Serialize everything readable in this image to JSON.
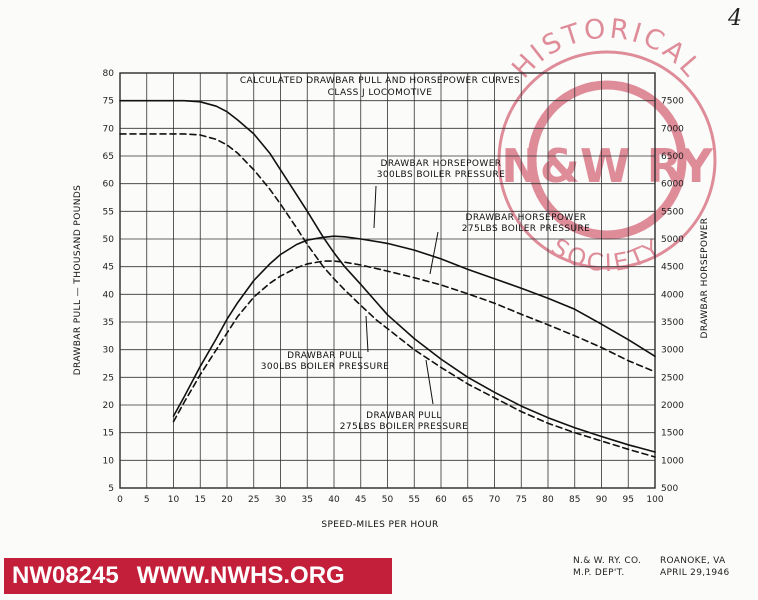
{
  "page_number": "4",
  "watermark": {
    "arc_top": "HISTORICAL",
    "arc_bottom": "SOCIETY",
    "monogram": "N&W RY",
    "color": "#c41f3a"
  },
  "footer": {
    "catalog_id": "NW08245",
    "website": "WWW.NWHS.ORG",
    "company_line1": "N.& W. RY. CO.",
    "company_line2": "M.P. DEP'T.",
    "place": "ROANOKE, VA",
    "date": "APRIL 29,1946"
  },
  "chart_data": {
    "type": "line",
    "title": "CALCULATED DRAWBAR PULL AND HORSEPOWER CURVES",
    "subtitle": "CLASS J LOCOMOTIVE",
    "xlabel": "SPEED-MILES PER HOUR",
    "ylabel_left": "DRAWBAR PULL — THOUSAND POUNDS",
    "ylabel_right": "DRAWBAR HORSEPOWER",
    "xlim": [
      0,
      100
    ],
    "ylim_left": [
      5,
      80
    ],
    "ylim_right": [
      500,
      8000
    ],
    "x_ticks": [
      0,
      5,
      10,
      15,
      20,
      25,
      30,
      35,
      40,
      45,
      50,
      55,
      60,
      65,
      70,
      75,
      80,
      85,
      90,
      95,
      100
    ],
    "y_ticks_left": [
      5,
      10,
      15,
      20,
      25,
      30,
      35,
      40,
      45,
      50,
      55,
      60,
      65,
      70,
      75,
      80
    ],
    "y_ticks_right": [
      500,
      1000,
      1500,
      2000,
      2500,
      3000,
      3500,
      4000,
      4500,
      5000,
      5500,
      6000,
      6500,
      7000,
      7500
    ],
    "grid": true,
    "series": [
      {
        "axis": "left",
        "style": "solid",
        "x": [
          0,
          10,
          12,
          15,
          18,
          20,
          22,
          25,
          28,
          30,
          33,
          35,
          38,
          40,
          42,
          45,
          48,
          50,
          55,
          60,
          65,
          70,
          75,
          80,
          85,
          90,
          95,
          100
        ],
        "y": [
          75,
          75,
          75,
          74.8,
          74,
          73,
          71.5,
          69,
          65.5,
          62.5,
          58,
          55,
          50.3,
          47.5,
          45,
          41.8,
          38.5,
          36.3,
          32,
          28.3,
          25,
          22.3,
          19.8,
          17.7,
          15.9,
          14.3,
          12.8,
          11.5
        ]
      },
      {
        "axis": "left",
        "style": "dashed",
        "x": [
          0,
          10,
          12,
          15,
          18,
          20,
          22,
          25,
          28,
          30,
          33,
          35,
          38,
          40,
          42,
          45,
          48,
          50,
          55,
          60,
          65,
          70,
          75,
          80,
          85,
          90,
          95,
          100
        ],
        "y": [
          69,
          69,
          69,
          68.8,
          68,
          67,
          65.5,
          62.5,
          59,
          56.3,
          52,
          49,
          45,
          42.8,
          40.8,
          38,
          35.3,
          33.8,
          30,
          26.8,
          23.8,
          21.3,
          18.8,
          16.7,
          15,
          13.5,
          12,
          10.6
        ]
      },
      {
        "axis": "right",
        "style": "solid",
        "x": [
          10,
          12,
          15,
          18,
          20,
          22,
          25,
          28,
          30,
          33,
          35,
          38,
          40,
          42,
          45,
          50,
          55,
          60,
          65,
          70,
          75,
          80,
          85,
          90,
          95,
          100
        ],
        "y": [
          1800,
          2150,
          2700,
          3200,
          3550,
          3850,
          4250,
          4550,
          4720,
          4900,
          4980,
          5030,
          5050,
          5040,
          5000,
          4920,
          4800,
          4640,
          4450,
          4280,
          4110,
          3930,
          3730,
          3460,
          3180,
          2880
        ]
      },
      {
        "axis": "right",
        "style": "dashed",
        "x": [
          10,
          12,
          15,
          18,
          20,
          22,
          25,
          28,
          30,
          33,
          35,
          38,
          40,
          42,
          45,
          50,
          55,
          60,
          65,
          70,
          75,
          80,
          85,
          90,
          95,
          100
        ],
        "y": [
          1700,
          2050,
          2550,
          3000,
          3300,
          3600,
          3950,
          4200,
          4330,
          4480,
          4550,
          4600,
          4600,
          4580,
          4530,
          4420,
          4300,
          4170,
          4010,
          3840,
          3640,
          3450,
          3250,
          3040,
          2800,
          2600
        ]
      }
    ],
    "annotations": [
      {
        "text": "DRAWBAR HORSEPOWER",
        "text2": "300LBS BOILER PRESSURE"
      },
      {
        "text": "DRAWBAR HORSEPOWER",
        "text2": "275LBS BOILER PRESSURE"
      },
      {
        "text": "DRAWBAR PULL",
        "text2": "300LBS BOILER PRESSURE"
      },
      {
        "text": "DRAWBAR PULL",
        "text2": "275LBS BOILER PRESSURE"
      }
    ]
  }
}
